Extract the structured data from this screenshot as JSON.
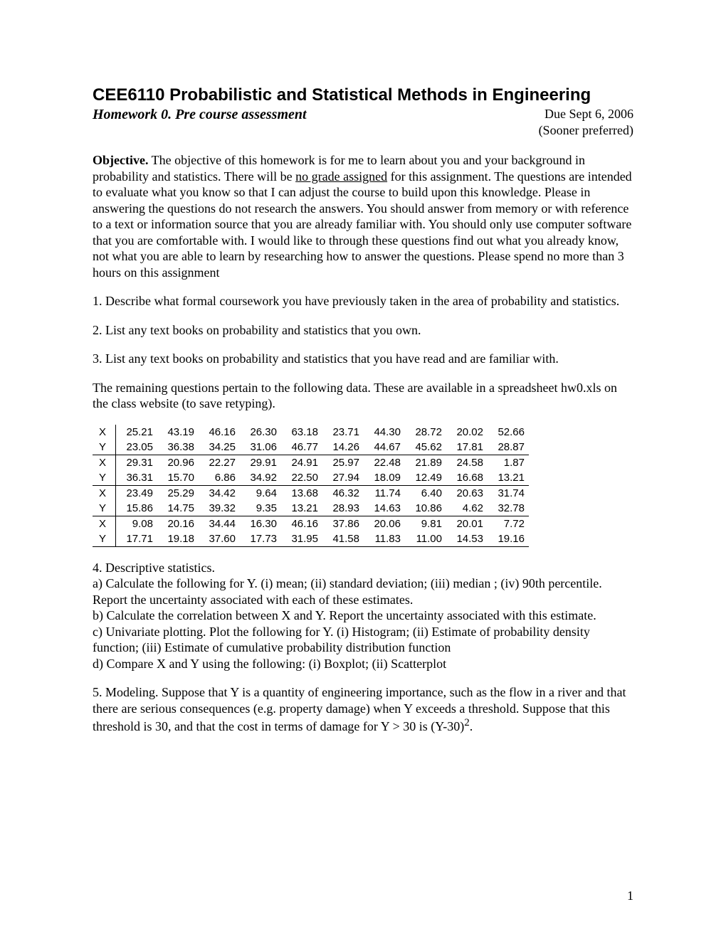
{
  "title": "CEE6110 Probabilistic and Statistical Methods in Engineering",
  "subtitle": "Homework 0.  Pre course assessment",
  "due": "Due Sept 6, 2006",
  "sooner": "(Sooner preferred)",
  "objective_label": "Objective.",
  "objective_pre": "  The objective of this homework is for me to learn about you and your background in probability and statistics.  There will be ",
  "underlined": "no grade assigned",
  "objective_post": " for this assignment.  The questions are intended to evaluate what you know so that I can adjust the course to build upon this knowledge.  Please in answering the questions do not research the answers.  You should answer from memory or with reference to a text or information source that you are already familiar with.  You should only use computer software that you are comfortable with.  I would like to through these questions find out what you already know, not what you are able to learn by researching how to answer the questions.  Please spend no more than 3 hours on this assignment",
  "q1": "1.  Describe what formal coursework you have previously taken in the area of probability and statistics.",
  "q2": "2.  List any text books on probability and statistics that you own.",
  "q3": "3.  List any text books on probability and statistics that you have read and are familiar with.",
  "data_intro": "The remaining questions pertain to the following data.  These are available in a spreadsheet hw0.xls on the class website (to save retyping).",
  "table": {
    "rows": [
      {
        "label": "X",
        "vals": [
          "25.21",
          "43.19",
          "46.16",
          "26.30",
          "63.18",
          "23.71",
          "44.30",
          "28.72",
          "20.02",
          "52.66"
        ]
      },
      {
        "label": "Y",
        "vals": [
          "23.05",
          "36.38",
          "34.25",
          "31.06",
          "46.77",
          "14.26",
          "44.67",
          "45.62",
          "17.81",
          "28.87"
        ]
      },
      {
        "label": "X",
        "vals": [
          "29.31",
          "20.96",
          "22.27",
          "29.91",
          "24.91",
          "25.97",
          "22.48",
          "21.89",
          "24.58",
          "1.87"
        ]
      },
      {
        "label": "Y",
        "vals": [
          "36.31",
          "15.70",
          "6.86",
          "34.92",
          "22.50",
          "27.94",
          "18.09",
          "12.49",
          "16.68",
          "13.21"
        ]
      },
      {
        "label": "X",
        "vals": [
          "23.49",
          "25.29",
          "34.42",
          "9.64",
          "13.68",
          "46.32",
          "11.74",
          "6.40",
          "20.63",
          "31.74"
        ]
      },
      {
        "label": "Y",
        "vals": [
          "15.86",
          "14.75",
          "39.32",
          "9.35",
          "13.21",
          "28.93",
          "14.63",
          "10.86",
          "4.62",
          "32.78"
        ]
      },
      {
        "label": "X",
        "vals": [
          "9.08",
          "20.16",
          "34.44",
          "16.30",
          "46.16",
          "37.86",
          "20.06",
          "9.81",
          "20.01",
          "7.72"
        ]
      },
      {
        "label": "Y",
        "vals": [
          "17.71",
          "19.18",
          "37.60",
          "17.73",
          "31.95",
          "41.58",
          "11.83",
          "11.00",
          "14.53",
          "19.16"
        ]
      }
    ]
  },
  "q4_title": "4.  Descriptive statistics.",
  "q4a": "a) Calculate the following for Y.  (i) mean; (ii) standard deviation; (iii) median ; (iv) 90th percentile.  Report the uncertainty associated with each of these estimates.",
  "q4b": "b) Calculate the correlation between X and Y.  Report the uncertainty associated with this estimate.",
  "q4c": "c) Univariate plotting.  Plot the following for Y.  (i) Histogram; (ii) Estimate of probability density function; (iii) Estimate of cumulative probability distribution function",
  "q4d": "d)  Compare X and Y using the following:  (i) Boxplot;  (ii) Scatterplot",
  "q5_pre": "5.  Modeling.  Suppose that Y is a quantity of engineering importance, such as the flow in a river and that there are serious consequences (e.g. property damage) when Y exceeds a threshold.  Suppose that this threshold is 30, and that the cost in terms of damage for Y > 30 is (Y-30)",
  "q5_sup": "2",
  "q5_post": ".",
  "page_num": "1"
}
